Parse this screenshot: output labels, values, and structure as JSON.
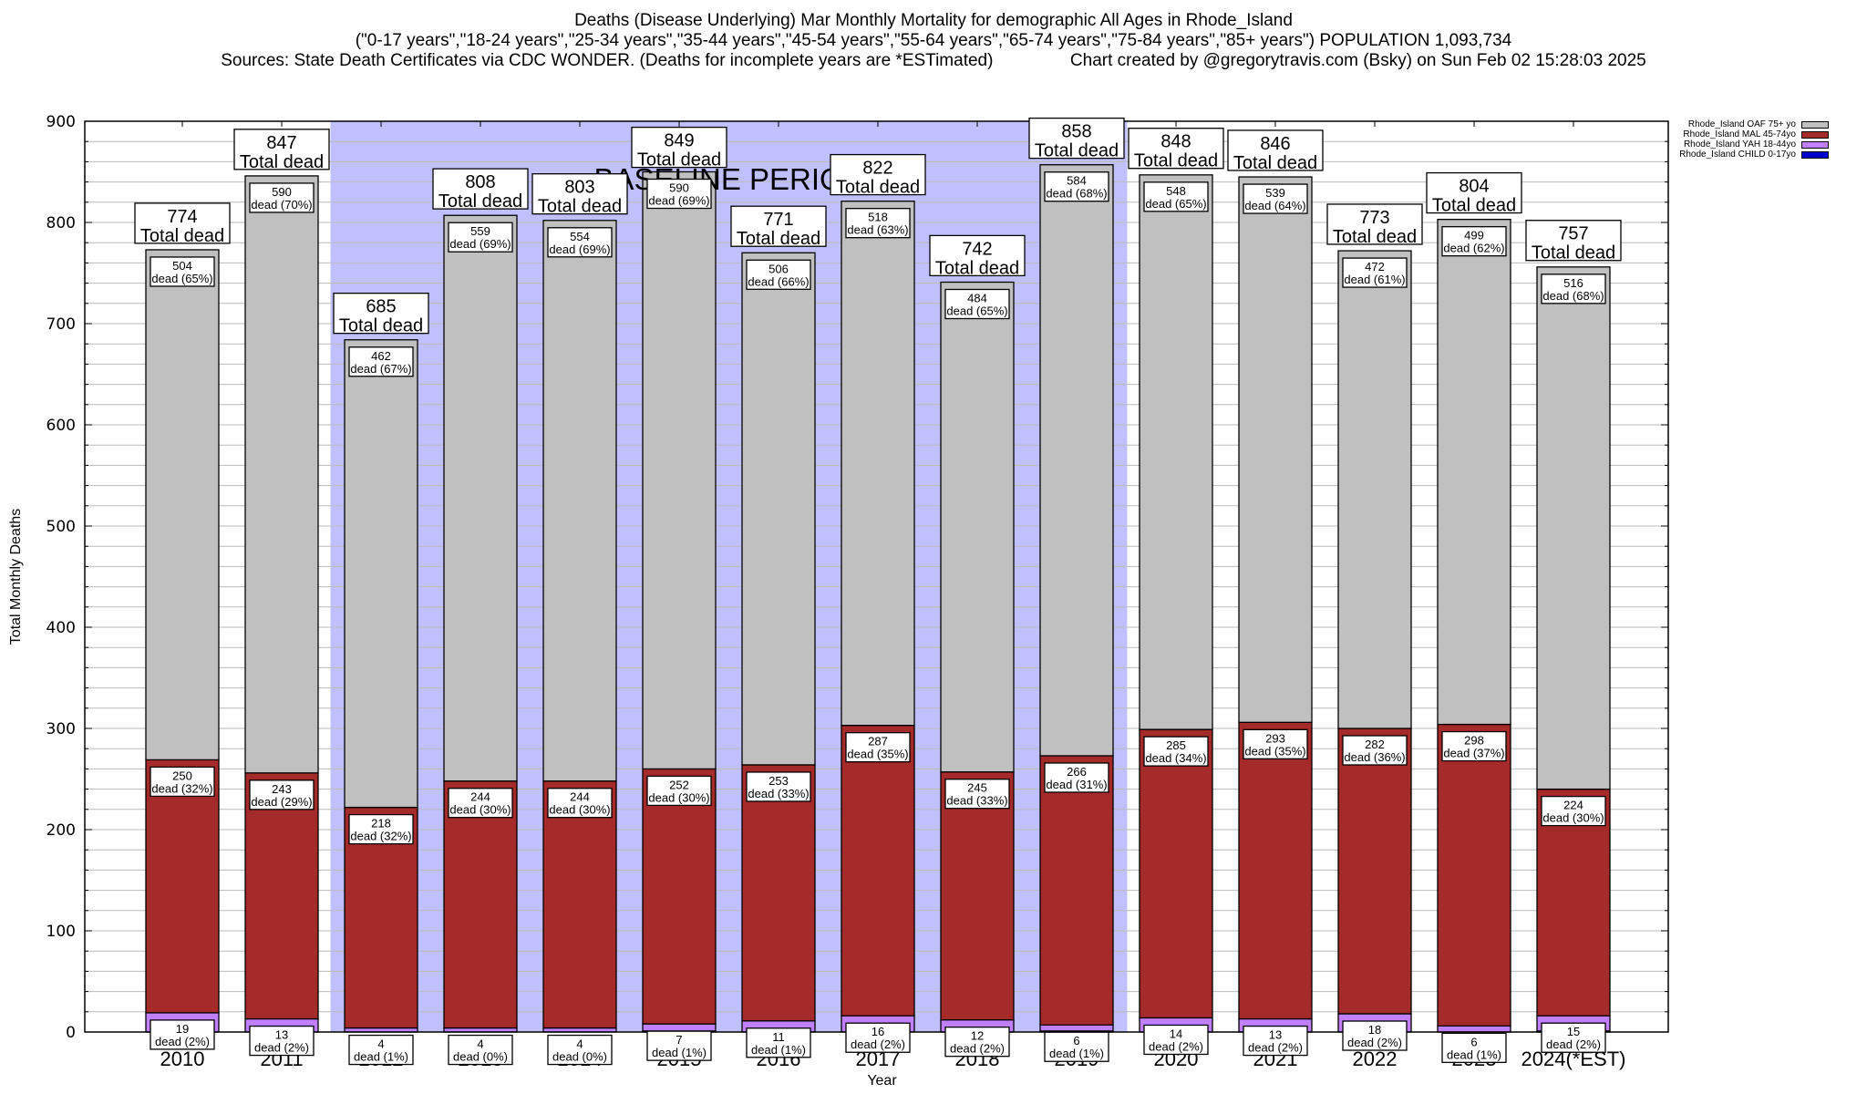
{
  "header": {
    "title_line1": "Deaths (Disease Underlying) Mar Monthly Mortality for demographic All Ages in Rhode_Island",
    "title_line2": "(\"0-17 years\",\"18-24 years\",\"25-34 years\",\"35-44 years\",\"45-54 years\",\"55-64 years\",\"65-74 years\",\"75-84 years\",\"85+ years\") POPULATION 1,093,734",
    "title_line3_left": "Sources: State Death Certificates via CDC WONDER. (Deaths for incomplete years are *ESTimated)",
    "title_line3_right": "Chart created by @gregorytravis.com (Bsky) on Sun Feb 02 15:28:03 2025"
  },
  "legend": {
    "items": [
      {
        "label": "Rhode_Island OAF 75+ yo",
        "color": "#c0c0c0"
      },
      {
        "label": "Rhode_Island MAL 45-74yo",
        "color": "#a52a2a"
      },
      {
        "label": "Rhode_Island YAH 18-44yo",
        "color": "#c080ff"
      },
      {
        "label": "Rhode_Island CHILD 0-17yo",
        "color": "#0000cd"
      }
    ]
  },
  "chart_data": {
    "type": "bar",
    "stacked": true,
    "title": "Deaths (Disease Underlying) Mar Monthly Mortality for demographic All Ages in Rhode_Island",
    "xlabel": "Year",
    "ylabel": "Total Monthly Deaths",
    "ylim": [
      0,
      900
    ],
    "yticks": [
      0,
      100,
      200,
      300,
      400,
      500,
      600,
      700,
      800,
      900
    ],
    "grid": true,
    "legend_position": "top-right-outside",
    "categories": [
      "2010",
      "2011",
      "2012",
      "2013",
      "2014",
      "2015",
      "2016",
      "2017",
      "2018",
      "2019",
      "2020",
      "2021",
      "2022",
      "2023",
      "2024(*EST)"
    ],
    "baseline_period": {
      "label": "BASELINE PERIOD",
      "from": "2012",
      "to": "2019",
      "color": "#c0c0ff"
    },
    "totals": [
      774,
      847,
      685,
      808,
      803,
      849,
      771,
      822,
      742,
      858,
      848,
      846,
      773,
      804,
      757
    ],
    "total_label_suffix": "Total dead",
    "series": [
      {
        "name": "Rhode_Island CHILD 0-17yo",
        "color": "#0000cd",
        "values": [
          0,
          0,
          0,
          0,
          0,
          1,
          0,
          0,
          0,
          1,
          0,
          0,
          0,
          0,
          1
        ],
        "show_labels": false
      },
      {
        "name": "Rhode_Island YAH 18-44yo",
        "color": "#c080ff",
        "values": [
          19,
          13,
          4,
          4,
          4,
          7,
          11,
          16,
          12,
          6,
          14,
          13,
          18,
          6,
          15
        ],
        "pct": [
          "2%",
          "2%",
          "1%",
          "0%",
          "0%",
          "1%",
          "1%",
          "2%",
          "2%",
          "1%",
          "2%",
          "2%",
          "2%",
          "1%",
          "2%"
        ]
      },
      {
        "name": "Rhode_Island MAL 45-74yo",
        "color": "#a52a2a",
        "values": [
          250,
          243,
          218,
          244,
          244,
          252,
          253,
          287,
          245,
          266,
          285,
          293,
          282,
          298,
          224
        ],
        "pct": [
          "32%",
          "29%",
          "32%",
          "30%",
          "30%",
          "30%",
          "33%",
          "35%",
          "33%",
          "31%",
          "34%",
          "35%",
          "36%",
          "37%",
          "30%"
        ]
      },
      {
        "name": "Rhode_Island OAF 75+ yo",
        "color": "#c0c0c0",
        "values": [
          504,
          590,
          462,
          559,
          554,
          590,
          506,
          518,
          484,
          584,
          548,
          539,
          472,
          499,
          516
        ],
        "pct": [
          "65%",
          "70%",
          "67%",
          "69%",
          "69%",
          "69%",
          "66%",
          "63%",
          "65%",
          "68%",
          "65%",
          "64%",
          "61%",
          "62%",
          "68%"
        ]
      }
    ],
    "segment_label_word": "dead"
  }
}
